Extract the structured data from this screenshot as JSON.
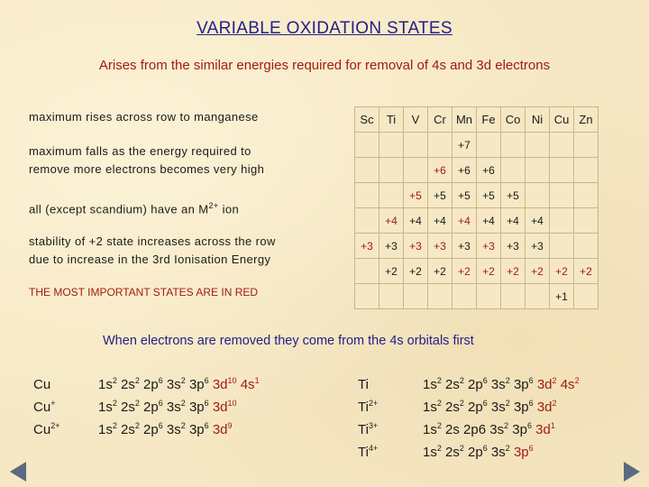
{
  "title": "VARIABLE OXIDATION STATES",
  "subtitle": "Arises from the similar energies required for removal of 4s and 3d electrons",
  "notes": {
    "n1": "maximum rises across row to manganese",
    "n2a": "maximum falls as the energy required to",
    "n2b": "remove more electrons becomes very high",
    "n3_pre": "all (except scandium) have an M",
    "n3_sup": "2+",
    "n3_post": " ion",
    "n4a": "stability of +2 state increases across the row",
    "n4b": "due to increase in the 3rd Ionisation Energy",
    "red": "THE MOST IMPORTANT STATES ARE IN RED"
  },
  "elements": [
    "Sc",
    "Ti",
    "V",
    "Cr",
    "Mn",
    "Fe",
    "Co",
    "Ni",
    "Cu",
    "Zn"
  ],
  "states": {
    "plus7": "+7",
    "plus6": "+6",
    "plus5": "+5",
    "plus4": "+4",
    "plus3": "+3",
    "plus2": "+2",
    "plus1": "+1"
  },
  "removed": "When electrons are removed they come from the 4s orbitals first",
  "cu": {
    "ions": [
      "Cu",
      "Cu",
      "Cu"
    ],
    "ion_charges": [
      "",
      "+",
      "2+"
    ]
  },
  "ti": {
    "ions": [
      "Ti",
      "Ti",
      "Ti",
      "Ti"
    ],
    "ion_charges": [
      "",
      "2+",
      "3+",
      "4+"
    ]
  },
  "colors": {
    "title": "#24208a",
    "red": "#a01c14",
    "nav": "#5a6a80"
  },
  "icons": {
    "prev": "triangle-left",
    "next": "triangle-right"
  }
}
